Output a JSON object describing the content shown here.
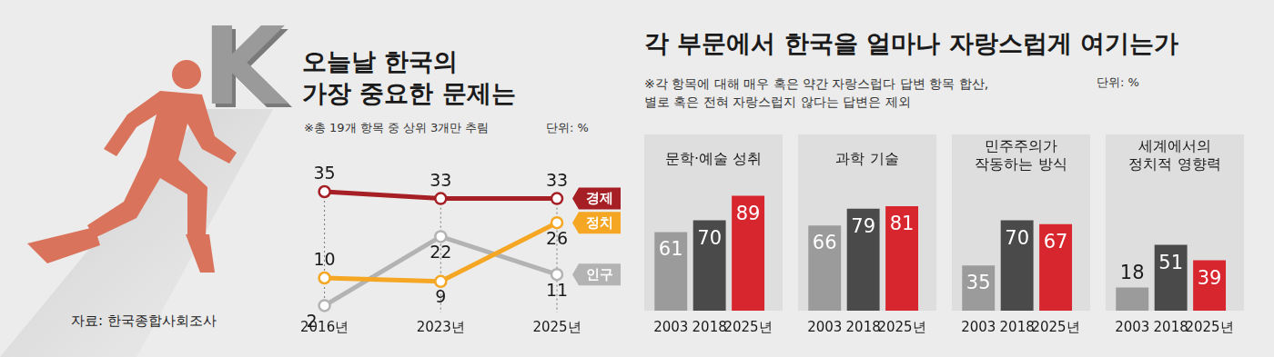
{
  "emblem": "K",
  "source": "자료: 한국종합사회조사",
  "section": {
    "title": "각 부문에서 한국을 얼마나 자랑스럽게 여기는가",
    "note": "※각 항목에 대해 매우 혹은 약간 자랑스럽다 답변 항목 합산,\n별로 혹은 전혀 자랑스럽지 않다는 답변은 제외",
    "unit": "단위: %"
  },
  "chart_data": [
    {
      "type": "line",
      "title": "오늘날 한국의\n가장 중요한 문제는",
      "subtitle": "※총 19개 항목 중 상위 3개만 추림",
      "unit": "단위: %",
      "categories": [
        "2016년",
        "2023년",
        "2025년"
      ],
      "series": [
        {
          "name": "경제",
          "color": "#a51f24",
          "values": [
            35,
            33,
            33
          ]
        },
        {
          "name": "정치",
          "color": "#f5a623",
          "values": [
            10,
            9,
            26
          ]
        },
        {
          "name": "인구",
          "color": "#b3b3b3",
          "values": [
            2,
            22,
            11
          ]
        }
      ],
      "ylim": [
        0,
        40
      ],
      "grid": false,
      "data_labels": true,
      "tick_labels": "x",
      "marker": "circle"
    },
    {
      "type": "bar",
      "title": "문학·예술 성취",
      "categories": [
        "2003",
        "2018",
        "2025년"
      ],
      "values": [
        61,
        70,
        89
      ],
      "colors": [
        "#9b9b9b",
        "#4a4a4a",
        "#d8262e"
      ],
      "ylim": [
        0,
        100
      ],
      "grid": false,
      "data_labels": true,
      "tick_labels": "x"
    },
    {
      "type": "bar",
      "title": "과학 기술",
      "categories": [
        "2003",
        "2018",
        "2025년"
      ],
      "values": [
        66,
        79,
        81
      ],
      "colors": [
        "#9b9b9b",
        "#4a4a4a",
        "#d8262e"
      ],
      "ylim": [
        0,
        100
      ],
      "grid": false,
      "data_labels": true,
      "tick_labels": "x"
    },
    {
      "type": "bar",
      "title": "민주주의가\n작동하는 방식",
      "categories": [
        "2003",
        "2018",
        "2025년"
      ],
      "values": [
        35,
        70,
        67
      ],
      "colors": [
        "#9b9b9b",
        "#4a4a4a",
        "#d8262e"
      ],
      "ylim": [
        0,
        100
      ],
      "grid": false,
      "data_labels": true,
      "tick_labels": "x"
    },
    {
      "type": "bar",
      "title": "세계에서의\n정치적 영향력",
      "categories": [
        "2003",
        "2018",
        "2025년"
      ],
      "values": [
        18,
        51,
        39
      ],
      "colors": [
        "#9b9b9b",
        "#4a4a4a",
        "#d8262e"
      ],
      "ylim": [
        0,
        100
      ],
      "grid": false,
      "data_labels": true,
      "tick_labels": "x"
    }
  ]
}
